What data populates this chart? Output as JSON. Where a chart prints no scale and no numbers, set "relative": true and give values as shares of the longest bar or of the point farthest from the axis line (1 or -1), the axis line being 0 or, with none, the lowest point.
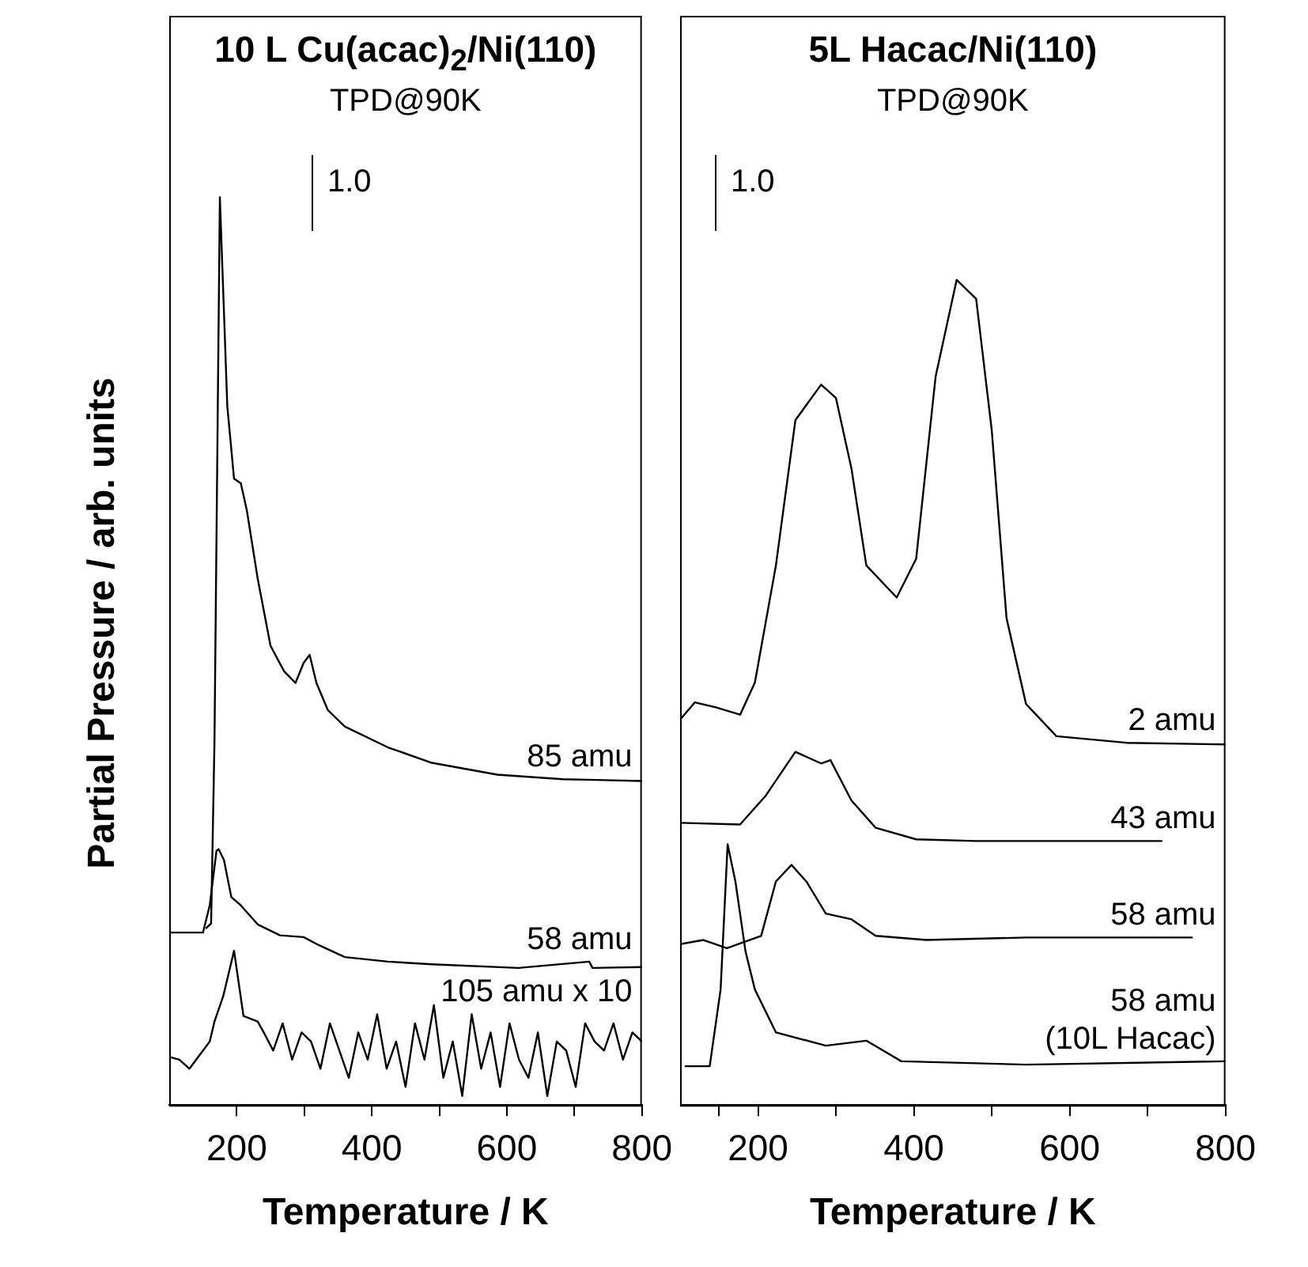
{
  "chart_data": [
    {
      "type": "line",
      "title": "10 L Cu(acac)$_{2}$/Ni(110)",
      "xlabel": "Temperature / K",
      "ylabel": "Partial Pressure / arb. units",
      "relative": true,
      "xlim": [
        100,
        800
      ],
      "xticks": [
        200,
        {
          "value": 300,
          "label": null
        },
        400,
        {
          "value": 500,
          "label": null
        },
        600,
        {
          "value": 700,
          "label": null
        },
        800
      ],
      "legend": false,
      "grid": false,
      "marker": "none",
      "line_style": "solid",
      "annotations": [
        "TPD@90K",
        "1.0"
      ],
      "series": [
        {
          "name": "85 amu",
          "color": "#000000",
          "x": [
            155,
            162,
            167,
            175,
            186,
            196,
            206,
            215,
            231,
            250,
            270,
            287,
            299,
            308,
            318,
            335,
            360,
            424,
            489,
            586,
            683,
            800
          ],
          "values": [
            0.195,
            0.2,
            0.4,
            1.0,
            0.77,
            0.69,
            0.685,
            0.655,
            0.58,
            0.506,
            0.478,
            0.465,
            0.487,
            0.496,
            0.465,
            0.435,
            0.417,
            0.394,
            0.377,
            0.364,
            0.359,
            0.357
          ]
        },
        {
          "name": "58 amu",
          "color": "#000000",
          "x": [
            100,
            150,
            160,
            170,
            173,
            181,
            192,
            206,
            231,
            264,
            299,
            322,
            360,
            424,
            489,
            617,
            722,
            727,
            800
          ],
          "values": [
            0.19,
            0.19,
            0.22,
            0.28,
            0.282,
            0.27,
            0.229,
            0.22,
            0.199,
            0.187,
            0.185,
            0.176,
            0.163,
            0.158,
            0.155,
            0.151,
            0.158,
            0.151,
            0.152
          ]
        },
        {
          "name": "105 amu x 10",
          "color": "#000000",
          "x": [
            100,
            115,
            130,
            145,
            160,
            167,
            180,
            196,
            210,
            231,
            240,
            254,
            268,
            282,
            296,
            310,
            324,
            338,
            352,
            366,
            380,
            394,
            408,
            422,
            436,
            450,
            464,
            478,
            492,
            506,
            520,
            534,
            548,
            562,
            576,
            590,
            604,
            618,
            632,
            646,
            660,
            674,
            688,
            702,
            716,
            730,
            744,
            758,
            772,
            786,
            800
          ],
          "values": [
            0.053,
            0.05,
            0.04,
            0.055,
            0.07,
            0.092,
            0.12,
            0.17,
            0.098,
            0.092,
            0.08,
            0.06,
            0.09,
            0.05,
            0.08,
            0.07,
            0.04,
            0.09,
            0.06,
            0.03,
            0.08,
            0.05,
            0.1,
            0.04,
            0.07,
            0.02,
            0.09,
            0.05,
            0.11,
            0.03,
            0.07,
            0.01,
            0.1,
            0.04,
            0.08,
            0.02,
            0.09,
            0.05,
            0.03,
            0.08,
            0.01,
            0.07,
            0.06,
            0.02,
            0.09,
            0.07,
            0.06,
            0.09,
            0.05,
            0.08,
            0.07
          ]
        }
      ]
    },
    {
      "type": "line",
      "title": "5L Hacac/Ni(110)",
      "xlabel": "Temperature / K",
      "relative": true,
      "xlim": [
        100,
        800
      ],
      "xticks": [
        {
          "value": 150,
          "label": null
        },
        200,
        {
          "value": 300,
          "label": null
        },
        400,
        {
          "value": 500,
          "label": null
        },
        600,
        {
          "value": 700,
          "label": null
        },
        800
      ],
      "legend": false,
      "grid": false,
      "marker": "none",
      "line_style": "solid",
      "annotations": [
        "TPD@90K",
        "1.0"
      ],
      "series": [
        {
          "name": "2 amu",
          "color": "#000000",
          "x": [
            100,
            119,
            146,
            177,
            196,
            223,
            248,
            281,
            300,
            320,
            339,
            378,
            403,
            428,
            455,
            480,
            500,
            519,
            544,
            583,
            673,
            800
          ],
          "values": [
            0.467,
            0.488,
            0.482,
            0.473,
            0.512,
            0.654,
            0.83,
            0.873,
            0.857,
            0.771,
            0.654,
            0.615,
            0.662,
            0.883,
            1.0,
            0.977,
            0.818,
            0.59,
            0.486,
            0.447,
            0.439,
            0.437
          ]
        },
        {
          "name": "43 amu",
          "color": "#000000",
          "x": [
            100,
            177,
            210,
            248,
            281,
            293,
            320,
            351,
            403,
            480,
            718
          ],
          "values": [
            0.342,
            0.34,
            0.375,
            0.428,
            0.414,
            0.418,
            0.369,
            0.336,
            0.322,
            0.32,
            0.32
          ]
        },
        {
          "name": "58 amu",
          "color": "#000000",
          "x": [
            100,
            130,
            160,
            204,
            223,
            243,
            262,
            287,
            320,
            351,
            416,
            544,
            757
          ],
          "values": [
            0.195,
            0.2,
            0.19,
            0.205,
            0.271,
            0.291,
            0.271,
            0.232,
            0.225,
            0.205,
            0.2,
            0.203,
            0.203
          ]
        },
        {
          "name": "58 amu (10L Hacac)",
          "color": "#000000",
          "x": [
            107,
            138,
            152,
            161,
            171,
            184,
            196,
            223,
            287,
            339,
            384,
            544,
            800
          ],
          "values": [
            0.047,
            0.047,
            0.14,
            0.316,
            0.271,
            0.186,
            0.14,
            0.088,
            0.072,
            0.078,
            0.053,
            0.049,
            0.053
          ]
        }
      ]
    }
  ]
}
